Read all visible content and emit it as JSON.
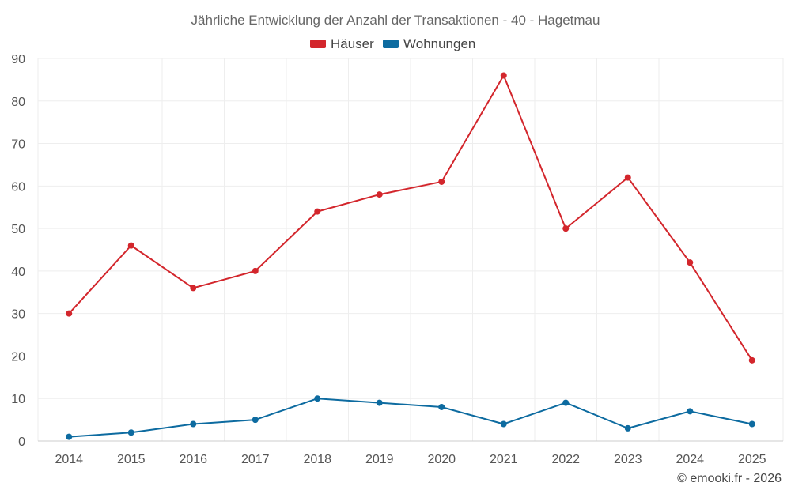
{
  "chart_data": {
    "type": "line",
    "title": "Jährliche Entwicklung der Anzahl der Transaktionen - 40 - Hagetmau",
    "categories": [
      "2014",
      "2015",
      "2016",
      "2017",
      "2018",
      "2019",
      "2020",
      "2021",
      "2022",
      "2023",
      "2024",
      "2025"
    ],
    "series": [
      {
        "name": "Häuser",
        "color": "#d3262c",
        "values": [
          30,
          46,
          36,
          40,
          54,
          58,
          61,
          86,
          50,
          62,
          42,
          19
        ]
      },
      {
        "name": "Wohnungen",
        "color": "#0d6ba0",
        "values": [
          1,
          2,
          4,
          5,
          10,
          9,
          8,
          4,
          9,
          3,
          7,
          4
        ]
      }
    ],
    "ylim": [
      0,
      90
    ],
    "yticks": [
      0,
      10,
      20,
      30,
      40,
      50,
      60,
      70,
      80,
      90
    ],
    "xlabel": "",
    "ylabel": "",
    "legend": "top-center",
    "grid": true
  },
  "credit": "© emooki.fr - 2026"
}
